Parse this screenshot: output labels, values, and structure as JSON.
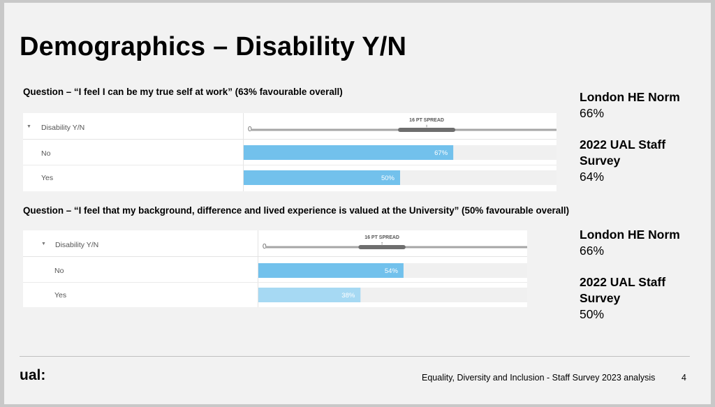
{
  "slide": {
    "title": "Demographics – Disability Y/N",
    "footer": "Equality, Diversity and Inclusion - Staff Survey 2023 analysis",
    "page_number": "4",
    "logo": "ual:"
  },
  "chart_data": [
    {
      "type": "bar",
      "title": "Question – “I feel I can be my true self at work” (63% favourable overall)",
      "category_header": "Disability Y/N",
      "axis_min_label": "0",
      "spread_label": "16 PT SPREAD",
      "categories": [
        "No",
        "Yes"
      ],
      "values": [
        67,
        50
      ],
      "value_labels": [
        "67%",
        "50%"
      ],
      "spread_range": [
        50,
        67
      ],
      "xlim": [
        0,
        100
      ],
      "bar_colors": [
        "#72c1ec",
        "#72c1ec"
      ],
      "benchmarks": [
        {
          "heading": "London HE Norm",
          "value": "66%"
        },
        {
          "heading": "2022 UAL Staff Survey",
          "value": "64%"
        }
      ]
    },
    {
      "type": "bar",
      "title": "Question – “I feel that my background, difference and lived experience is valued at the University” (50% favourable overall)",
      "category_header": "Disability Y/N",
      "axis_min_label": "0",
      "spread_label": "16 PT SPREAD",
      "categories": [
        "No",
        "Yes"
      ],
      "values": [
        54,
        38
      ],
      "value_labels": [
        "54%",
        "38%"
      ],
      "spread_range": [
        38,
        54
      ],
      "xlim": [
        0,
        100
      ],
      "bar_colors": [
        "#72c1ec",
        "#a6d9f3"
      ],
      "benchmarks": [
        {
          "heading": "London HE Norm",
          "value": "66%"
        },
        {
          "heading": "2022 UAL Staff Survey",
          "value": "50%"
        }
      ]
    }
  ]
}
